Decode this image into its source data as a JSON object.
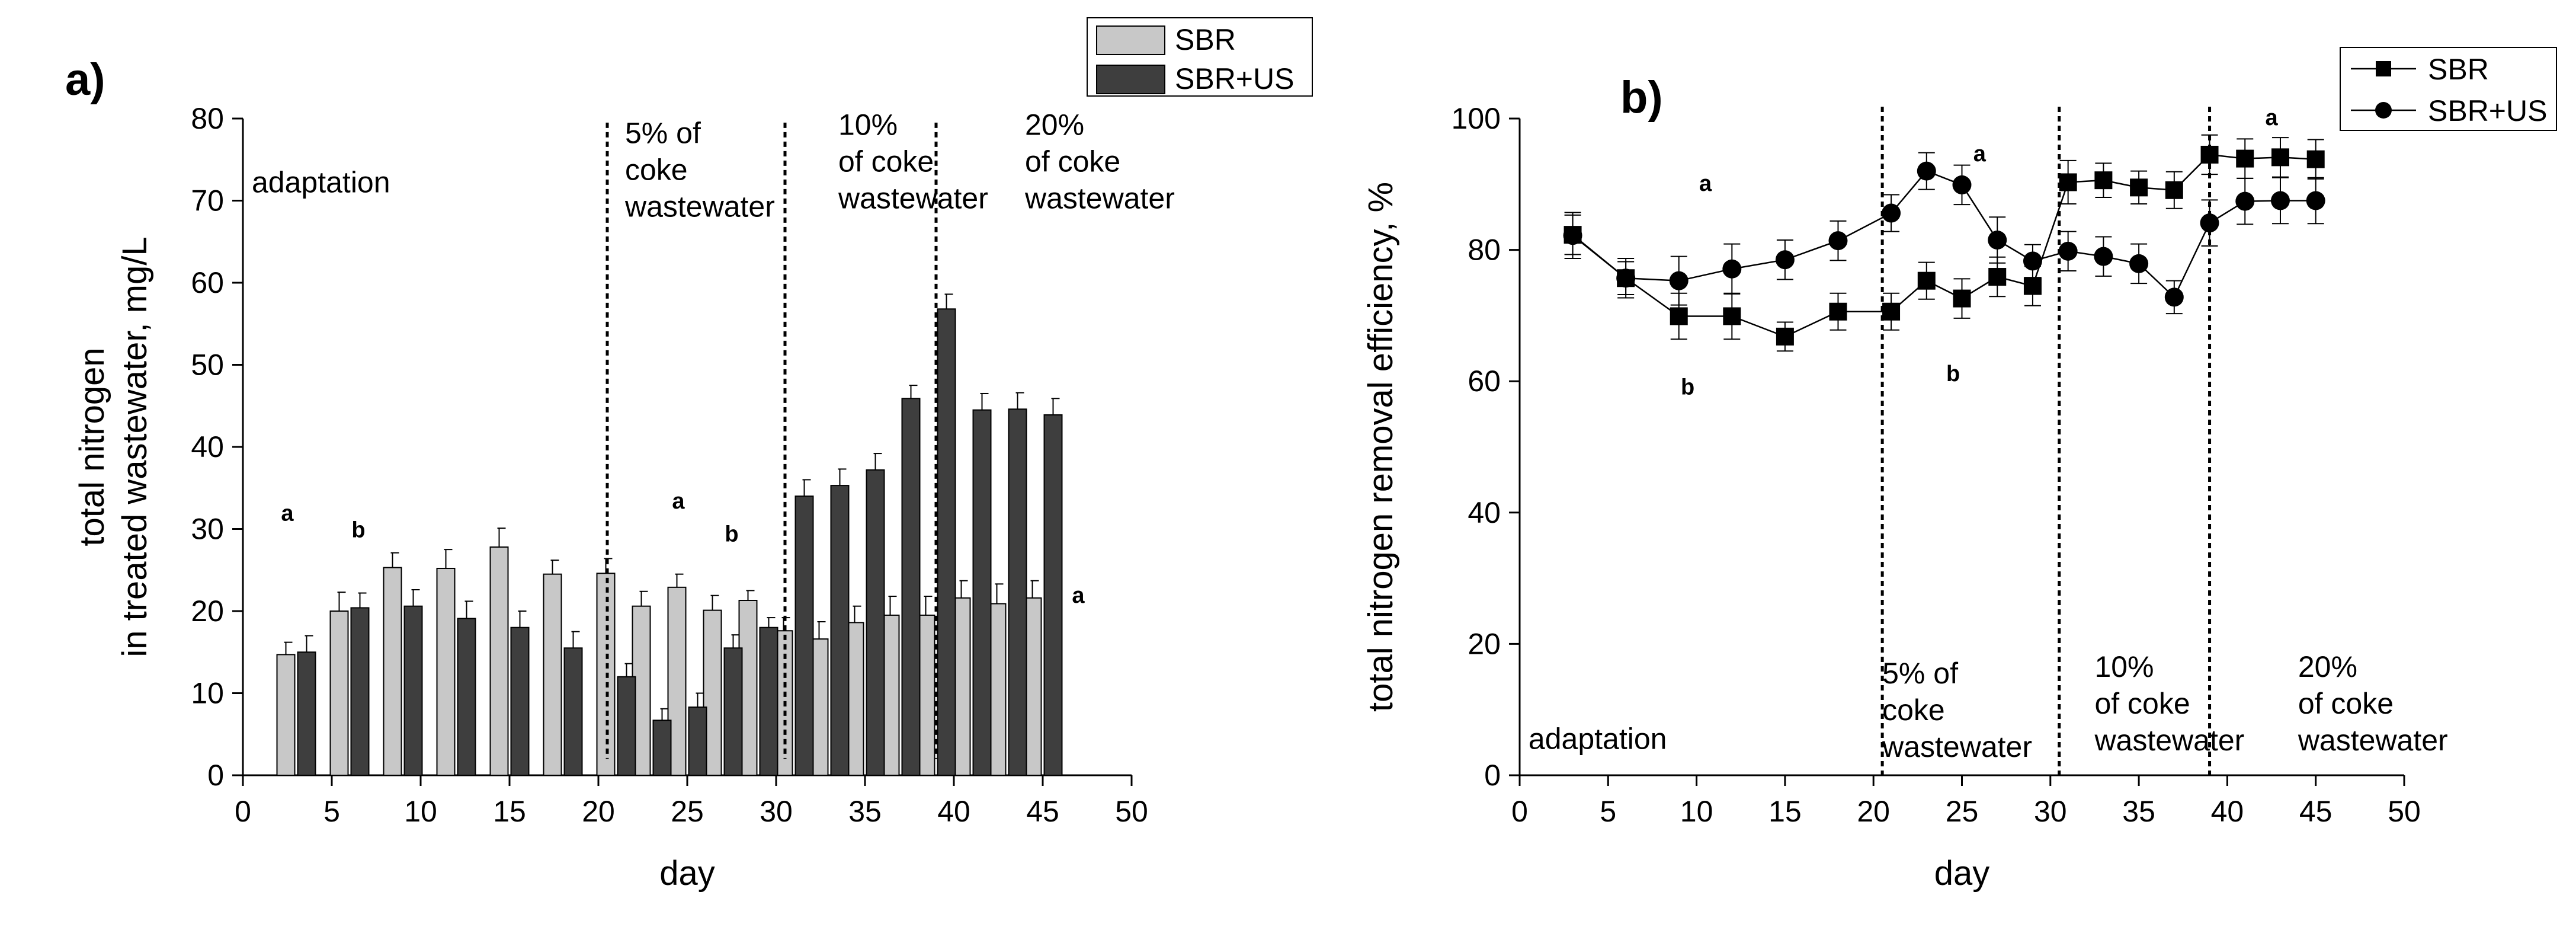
{
  "chart_data": [
    {
      "panel": "a)",
      "type": "bar",
      "xlabel": "day",
      "ylabel_lines": [
        "total nitrogen",
        "in treated wastewater, mg/L"
      ],
      "xlim": [
        0,
        50
      ],
      "ylim": [
        0,
        80
      ],
      "x_ticks": [
        0,
        5,
        10,
        15,
        20,
        25,
        30,
        35,
        40,
        45,
        50
      ],
      "y_ticks": [
        0,
        10,
        20,
        30,
        40,
        50,
        60,
        70,
        80
      ],
      "grid": false,
      "legend_position": "top-right",
      "series": [
        {
          "name": "SBR",
          "color": "#c8c8c8",
          "x": [
            3,
            6,
            9,
            12,
            15,
            18,
            21,
            23,
            25,
            27,
            29,
            31,
            33,
            35,
            37,
            39,
            41,
            43,
            45
          ],
          "values": [
            14.7,
            20.0,
            25.3,
            25.2,
            27.8,
            24.5,
            24.6,
            20.6,
            22.9,
            20.1,
            21.3,
            17.6,
            16.6,
            18.6,
            19.5,
            19.5,
            21.6,
            20.9,
            21.6
          ],
          "errors": [
            1.5,
            2.3,
            1.8,
            2.3,
            2.3,
            1.7,
            1.8,
            1.8,
            1.6,
            1.8,
            1.2,
            1.6,
            2.1,
            2.0,
            2.3,
            2.3,
            2.1,
            2.4,
            2.1
          ]
        },
        {
          "name": "SBR+US",
          "color": "#3e3e3e",
          "x": [
            3,
            6,
            9,
            12,
            15,
            18,
            21,
            23,
            25,
            27,
            29,
            31,
            33,
            35,
            37,
            39,
            41,
            43,
            45
          ],
          "values": [
            15.0,
            20.4,
            20.6,
            19.1,
            18.0,
            15.5,
            12.0,
            6.7,
            8.3,
            15.5,
            18.0,
            34.0,
            35.3,
            37.2,
            45.9,
            56.8,
            44.5,
            44.6,
            43.9
          ],
          "errors": [
            2.0,
            1.8,
            2.0,
            2.1,
            2.0,
            2.0,
            1.6,
            1.4,
            1.7,
            1.6,
            1.2,
            2.0,
            2.0,
            2.0,
            1.6,
            1.8,
            2.0,
            2.0,
            2.0
          ]
        }
      ],
      "phase_dividers": [
        20.5,
        30.5,
        39
      ],
      "annotations": [
        {
          "text": "a",
          "x": 2.5,
          "y": 31
        },
        {
          "text": "b",
          "x": 6.5,
          "y": 29
        },
        {
          "text": "a",
          "x": 24.5,
          "y": 32.5
        },
        {
          "text": "b",
          "x": 27.5,
          "y": 28.5
        },
        {
          "text": "a",
          "x": 47,
          "y": 21
        }
      ],
      "phase_labels": [
        {
          "lines": [
            "adaptation"
          ],
          "x": 0.5,
          "y": 71
        },
        {
          "lines": [
            "5% of",
            "coke",
            "wastewater"
          ],
          "x": 21.5,
          "y": 77
        },
        {
          "lines": [
            "10%",
            "of coke",
            "wastewater"
          ],
          "x": 33.5,
          "y": 78
        },
        {
          "lines": [
            "20%",
            "of coke",
            "wastewater"
          ],
          "x": 44,
          "y": 78
        }
      ]
    },
    {
      "panel": "b)",
      "type": "line",
      "xlabel": "day",
      "ylabel": "total nitrogen removal efficiency, %",
      "xlim": [
        0,
        50
      ],
      "ylim": [
        0,
        100
      ],
      "x_ticks": [
        0,
        5,
        10,
        15,
        20,
        25,
        30,
        35,
        40,
        45,
        50
      ],
      "y_ticks": [
        0,
        20,
        40,
        60,
        80,
        100
      ],
      "grid": false,
      "legend_position": "top-right",
      "series": [
        {
          "name": "SBR",
          "marker": "square",
          "x": [
            3,
            6,
            9,
            12,
            15,
            18,
            21,
            23,
            25,
            27,
            29,
            31,
            33,
            35,
            37,
            39,
            41,
            43,
            45
          ],
          "values": [
            82.3,
            75.7,
            69.9,
            69.9,
            66.8,
            70.6,
            70.6,
            75.3,
            72.6,
            75.9,
            74.5,
            90.3,
            90.6,
            89.5,
            89.1,
            94.5,
            93.9,
            94.1,
            93.8
          ],
          "errors": [
            3.0,
            2.5,
            3.5,
            3.5,
            2.2,
            2.8,
            2.8,
            2.8,
            3.0,
            3.0,
            3.0,
            3.3,
            2.6,
            2.5,
            2.8,
            3.0,
            3.0,
            3.0,
            3.0
          ]
        },
        {
          "name": "SBR+US",
          "marker": "circle",
          "x": [
            3,
            6,
            9,
            12,
            15,
            18,
            21,
            23,
            25,
            27,
            29,
            31,
            33,
            35,
            37,
            39,
            41,
            43,
            45
          ],
          "values": [
            82.2,
            75.7,
            75.3,
            77.1,
            78.5,
            81.4,
            85.6,
            92.0,
            89.9,
            81.5,
            78.3,
            79.8,
            79.0,
            77.9,
            72.8,
            84.1,
            87.4,
            87.5,
            87.5
          ],
          "errors": [
            3.5,
            3.0,
            3.7,
            3.8,
            3.0,
            3.0,
            2.8,
            2.8,
            3.0,
            3.5,
            2.5,
            3.0,
            3.0,
            3.0,
            2.5,
            3.5,
            3.5,
            3.5,
            3.5
          ]
        }
      ],
      "phase_dividers": [
        20.5,
        30.5,
        39
      ],
      "annotations": [
        {
          "text": "a",
          "x": 10.5,
          "y": 89
        },
        {
          "text": "b",
          "x": 9.5,
          "y": 58
        },
        {
          "text": "a",
          "x": 26,
          "y": 93.5
        },
        {
          "text": "b",
          "x": 24.5,
          "y": 60
        },
        {
          "text": "a",
          "x": 42.5,
          "y": 99
        }
      ],
      "phase_labels": [
        {
          "lines": [
            "adaptation"
          ],
          "x": 0.5,
          "y": 4
        },
        {
          "lines": [
            "5% of",
            "coke",
            "wastewater"
          ],
          "x": 20.5,
          "y": 14
        },
        {
          "lines": [
            "10%",
            "of coke",
            "wastewater"
          ],
          "x": 32.5,
          "y": 15
        },
        {
          "lines": [
            "20%",
            "of coke",
            "wastewater"
          ],
          "x": 44,
          "y": 15
        }
      ]
    }
  ]
}
